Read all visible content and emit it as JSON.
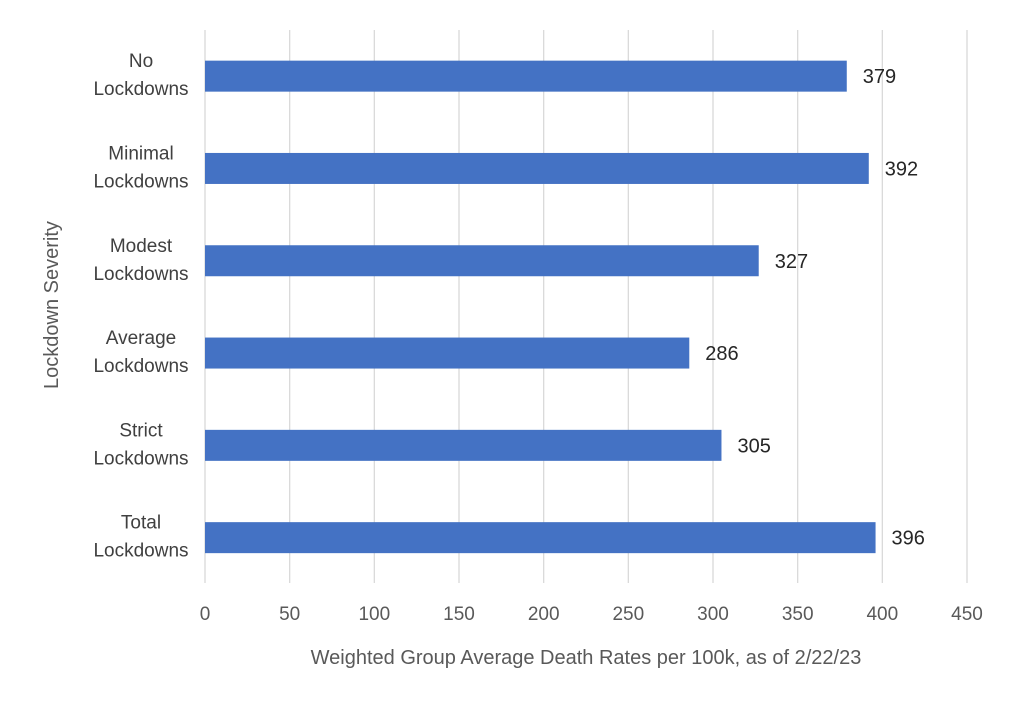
{
  "chart_data": {
    "type": "bar",
    "orientation": "horizontal",
    "categories": [
      [
        "No",
        "Lockdowns"
      ],
      [
        "Minimal",
        "Lockdowns"
      ],
      [
        "Modest",
        "Lockdowns"
      ],
      [
        "Average",
        "Lockdowns"
      ],
      [
        "Strict",
        "Lockdowns"
      ],
      [
        "Total",
        "Lockdowns"
      ]
    ],
    "values": [
      379,
      392,
      327,
      286,
      305,
      396
    ],
    "xlabel": "Weighted Group Average Death Rates per 100k, as of 2/22/23",
    "ylabel": "Lockdown Severity",
    "xlim": [
      0,
      450
    ],
    "xticks": [
      0,
      50,
      100,
      150,
      200,
      250,
      300,
      350,
      400,
      450
    ],
    "grid": "vertical",
    "legend": "none",
    "bar_color": "#4472C4",
    "grid_color": "#D9D9D9"
  }
}
